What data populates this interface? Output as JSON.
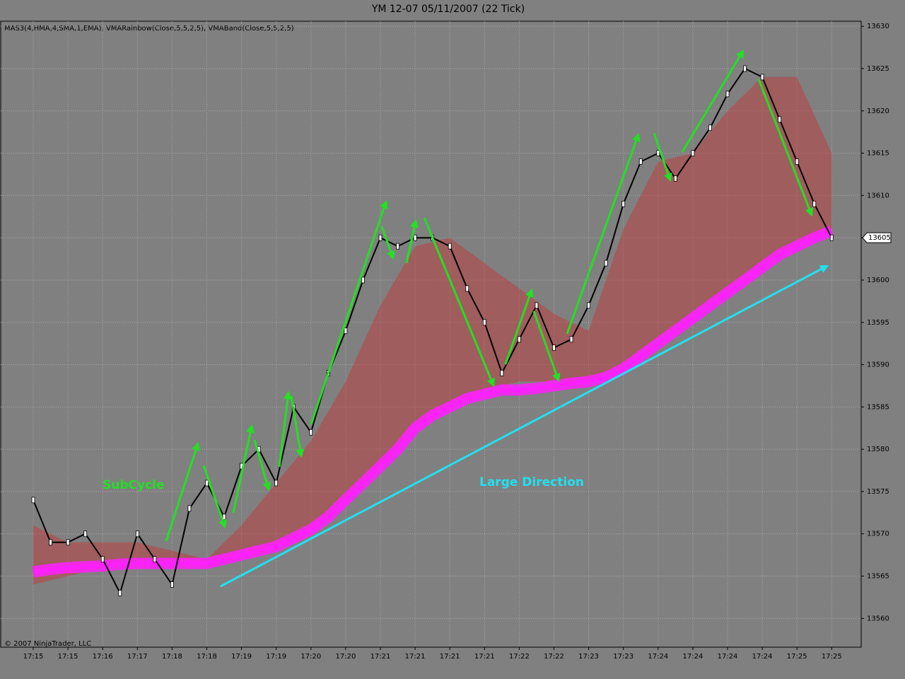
{
  "chart_data": {
    "type": "line",
    "title": "YM 12-07  05/11/2007  (22 Tick)",
    "indicators": "MAS3(4,HMA,4,SMA,1,EMA), VMARainbow(Close,5,5,2,5), VMABand(Close,5,5,2,5)",
    "copyright": "© 2007 NinjaTrader, LLC",
    "annotations": [
      "SubCycle",
      "Large Direction"
    ],
    "last_price": 13605,
    "categories": [
      "17:15",
      null,
      "17:15",
      null,
      "17:16",
      null,
      "17:17",
      null,
      "17:18",
      null,
      "17:18",
      null,
      "17:19",
      null,
      "17:19",
      null,
      "17:20",
      null,
      "17:20",
      null,
      "17:21",
      null,
      "17:21",
      null,
      "17:21",
      null,
      "17:21",
      null,
      "17:22",
      null,
      "17:22",
      null,
      "17:23",
      null,
      "17:23",
      null,
      "17:24",
      null,
      "17:24",
      null,
      "17:24",
      null,
      "17:24",
      null,
      "17:25",
      null,
      "17:25"
    ],
    "series": [
      {
        "color": "#000000",
        "values": [
          13574,
          13569,
          13569,
          13570,
          13567,
          13563,
          13570,
          13567,
          13564,
          13573,
          13576,
          13572,
          13578,
          13580,
          13576,
          13585,
          13582,
          13589,
          13594,
          13600,
          13605,
          13604,
          13605,
          13605,
          13604,
          13599,
          13595,
          13589,
          13593,
          13597,
          13592,
          13593,
          13597,
          13602,
          13609,
          13614,
          13615,
          13612,
          13615,
          13618,
          13622,
          13625,
          13624,
          13619,
          13614,
          13609,
          13605
        ]
      },
      {
        "color": "#c83232",
        "values": [
          13571,
          13570,
          13569,
          13569,
          13569,
          13569,
          13569,
          13568.5,
          13568,
          13567.5,
          13567,
          13569,
          13571,
          13573.5,
          13576,
          13578.5,
          13581,
          13584.5,
          13588,
          13592.5,
          13597,
          13600.5,
          13604,
          13604.5,
          13605,
          13603.5,
          13602,
          13600.5,
          13599,
          13597.5,
          13596,
          13595,
          13594,
          13600,
          13606,
          13610,
          13614,
          13614.5,
          13615,
          13617.5,
          13620,
          13622,
          13624,
          13624,
          13624,
          13619.5,
          13615
        ]
      },
      {
        "color": "#c83232",
        "values": [
          13564,
          13564.5,
          13565,
          13565.5,
          13566,
          13566,
          13566,
          13566,
          13566,
          13566,
          13566,
          13566.5,
          13567,
          13567.5,
          13568,
          13569,
          13570,
          13572,
          13574,
          13576,
          13578,
          13580,
          13582,
          13583.5,
          13585,
          13586,
          13587,
          13587.5,
          13588,
          13588,
          13588,
          13588,
          13588,
          13589,
          13590,
          13591.5,
          13593,
          13594.5,
          13596,
          13597.5,
          13599,
          13600.5,
          13602,
          13603,
          13604,
          13605,
          13606
        ]
      },
      {
        "color": "#ff20ff",
        "values": [
          13565.5,
          13565.8,
          13566,
          13566.1,
          13566.2,
          13566.4,
          13566.5,
          13566.5,
          13566.5,
          13566.5,
          13566.5,
          13567,
          13567.5,
          13568,
          13568.5,
          13569.5,
          13570.5,
          13572,
          13574,
          13576,
          13578,
          13580,
          13582.5,
          13584,
          13585,
          13586,
          13586.5,
          13587,
          13587,
          13587.2,
          13587.5,
          13587.8,
          13588,
          13588.5,
          13589.5,
          13591,
          13592.5,
          13594,
          13595.5,
          13597,
          13598.5,
          13600,
          13601.5,
          13603,
          13604,
          13605,
          13605.8
        ]
      }
    ],
    "ylim": [
      13556.6,
      13630.6
    ],
    "yticks": [
      13560,
      13565,
      13570,
      13575,
      13580,
      13585,
      13590,
      13595,
      13600,
      13605,
      13610,
      13615,
      13620,
      13625,
      13630
    ],
    "grid": true
  }
}
